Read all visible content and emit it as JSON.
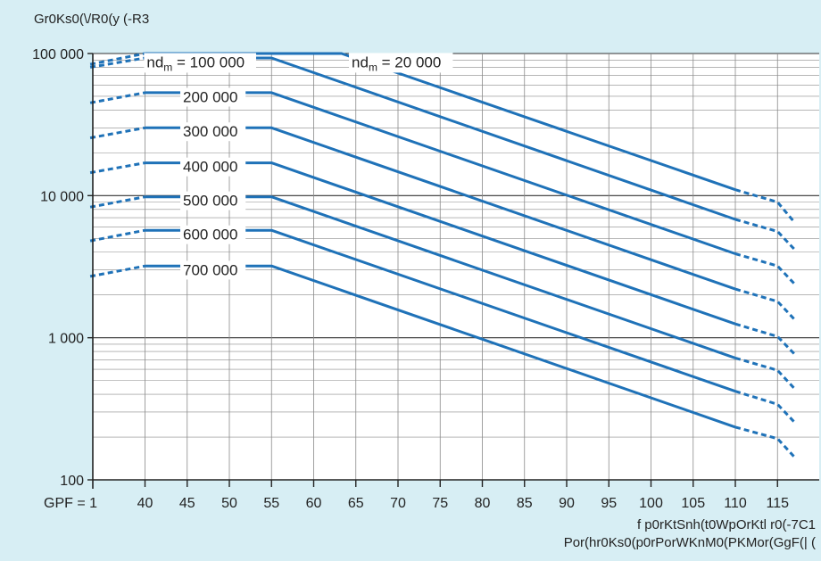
{
  "chart_data": {
    "type": "line",
    "y_scale": "log",
    "title": "",
    "ylabel": "Gr0Ks0(\\/R0(y  (-R3",
    "xlabel": "f p0rKtSnh(t0WpOrKtl r0(-7C1",
    "xlabel_line2": "Por(hr0Ks0(p0rPorWKnM0(PKMor(GgF(| (",
    "x_axis_prefix": "GPF = 1",
    "x_ticks": [
      40,
      45,
      50,
      55,
      60,
      65,
      70,
      75,
      80,
      85,
      90,
      95,
      100,
      105,
      110,
      115
    ],
    "x_tick_labels": [
      "40",
      "45",
      "50",
      "55",
      "60",
      "65",
      "70",
      "75",
      "80",
      "85",
      "90",
      "95",
      "100",
      "105",
      "110",
      "115"
    ],
    "xlim": [
      35,
      118
    ],
    "y_ticks": [
      100,
      1000,
      10000,
      100000
    ],
    "y_tick_labels": [
      "100",
      "1 000",
      "10 000",
      "100 000"
    ],
    "ylim": [
      100,
      100000
    ],
    "grid": true,
    "line_color": "#1f72b8",
    "series": [
      {
        "name": "nd_m = 20 000",
        "points": [
          [
            40,
            100000
          ],
          [
            63.3,
            100000
          ],
          [
            110,
            11000
          ]
        ],
        "dash_left": [
          [
            33.5,
            84000
          ],
          [
            40,
            100000
          ]
        ],
        "dash_right": [
          [
            110,
            11000
          ],
          [
            115,
            9000
          ],
          [
            117,
            6500
          ]
        ]
      },
      {
        "name": "100 000",
        "points": [
          [
            40,
            93000
          ],
          [
            55,
            93000
          ],
          [
            110,
            6800
          ]
        ],
        "dash_left": [
          [
            33.5,
            80000
          ],
          [
            40,
            93000
          ]
        ],
        "dash_right": [
          [
            110,
            6800
          ],
          [
            115,
            5600
          ],
          [
            117,
            4200
          ]
        ]
      },
      {
        "name": "200 000",
        "points": [
          [
            40,
            53000
          ],
          [
            55,
            53000
          ],
          [
            110,
            3900
          ]
        ],
        "dash_left": [
          [
            33.5,
            45000
          ],
          [
            40,
            53000
          ]
        ],
        "dash_right": [
          [
            110,
            3900
          ],
          [
            115,
            3200
          ],
          [
            117,
            2400
          ]
        ]
      },
      {
        "name": "300 000",
        "points": [
          [
            40,
            30000
          ],
          [
            55,
            30000
          ],
          [
            110,
            2200
          ]
        ],
        "dash_left": [
          [
            33.5,
            25500
          ],
          [
            40,
            30000
          ]
        ],
        "dash_right": [
          [
            110,
            2200
          ],
          [
            115,
            1800
          ],
          [
            117,
            1350
          ]
        ]
      },
      {
        "name": "400 000",
        "points": [
          [
            40,
            17000
          ],
          [
            55,
            17000
          ],
          [
            110,
            1250
          ]
        ],
        "dash_left": [
          [
            33.5,
            14500
          ],
          [
            40,
            17000
          ]
        ],
        "dash_right": [
          [
            110,
            1250
          ],
          [
            115,
            1020
          ],
          [
            117,
            770
          ]
        ]
      },
      {
        "name": "500 000",
        "points": [
          [
            40,
            9800
          ],
          [
            55,
            9800
          ],
          [
            110,
            720
          ]
        ],
        "dash_left": [
          [
            33.5,
            8300
          ],
          [
            40,
            9800
          ]
        ],
        "dash_right": [
          [
            110,
            720
          ],
          [
            115,
            590
          ],
          [
            117,
            440
          ]
        ]
      },
      {
        "name": "600 000",
        "points": [
          [
            40,
            5700
          ],
          [
            55,
            5700
          ],
          [
            110,
            420
          ]
        ],
        "dash_left": [
          [
            33.5,
            4800
          ],
          [
            40,
            5700
          ]
        ],
        "dash_right": [
          [
            110,
            420
          ],
          [
            115,
            340
          ],
          [
            117,
            255
          ]
        ]
      },
      {
        "name": "700 000",
        "points": [
          [
            40,
            3200
          ],
          [
            55,
            3200
          ],
          [
            110,
            235
          ]
        ],
        "dash_left": [
          [
            33.5,
            2700
          ],
          [
            40,
            3200
          ]
        ],
        "dash_right": [
          [
            110,
            235
          ],
          [
            115,
            195
          ],
          [
            117,
            145
          ]
        ]
      }
    ],
    "annotations": [
      {
        "prefix": "nd",
        "sub": "m",
        "suffix": " = 20 000",
        "x": 64.5,
        "y": 80000
      },
      {
        "prefix": "nd",
        "sub": "m",
        "suffix": " = 100 000",
        "x": 40.2,
        "y": 80000
      },
      {
        "text": "200 000",
        "x": 44.5,
        "y": 45500
      },
      {
        "text": "300 000",
        "x": 44.5,
        "y": 26000
      },
      {
        "text": "400 000",
        "x": 44.5,
        "y": 14700
      },
      {
        "text": "500 000",
        "x": 44.5,
        "y": 8500
      },
      {
        "text": "600 000",
        "x": 44.5,
        "y": 4900
      },
      {
        "text": "700 000",
        "x": 44.5,
        "y": 2760
      }
    ]
  }
}
